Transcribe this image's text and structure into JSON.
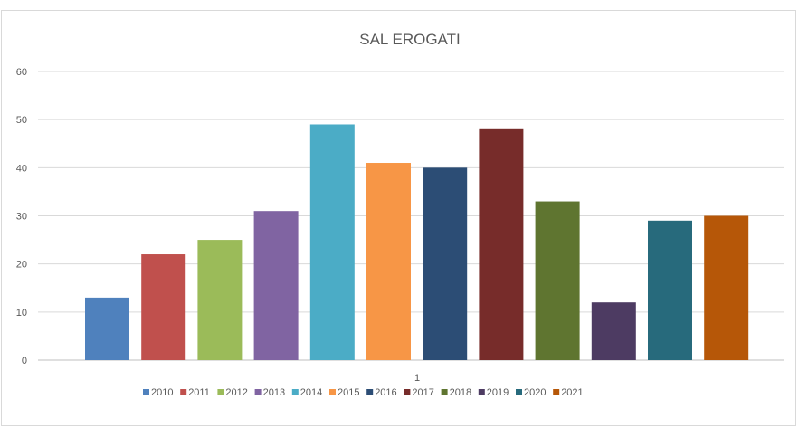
{
  "chart_data": {
    "type": "bar",
    "title": "SAL EROGATI",
    "xlabel": "",
    "ylabel": "",
    "categories": [
      "1"
    ],
    "ylim": [
      0,
      60
    ],
    "yticks": [
      0,
      10,
      20,
      30,
      40,
      50,
      60
    ],
    "grid": true,
    "legend_position": "bottom",
    "series": [
      {
        "name": "2010",
        "values": [
          13
        ],
        "color": "#4f81bd"
      },
      {
        "name": "2011",
        "values": [
          22
        ],
        "color": "#c0504d"
      },
      {
        "name": "2012",
        "values": [
          25
        ],
        "color": "#9bbb59"
      },
      {
        "name": "2013",
        "values": [
          31
        ],
        "color": "#8064a2"
      },
      {
        "name": "2014",
        "values": [
          49
        ],
        "color": "#4bacc6"
      },
      {
        "name": "2015",
        "values": [
          41
        ],
        "color": "#f79646"
      },
      {
        "name": "2016",
        "values": [
          40
        ],
        "color": "#2c4d75"
      },
      {
        "name": "2017",
        "values": [
          48
        ],
        "color": "#772c2a"
      },
      {
        "name": "2018",
        "values": [
          33
        ],
        "color": "#5f7530"
      },
      {
        "name": "2019",
        "values": [
          12
        ],
        "color": "#4d3b62"
      },
      {
        "name": "2020",
        "values": [
          29
        ],
        "color": "#276a7c"
      },
      {
        "name": "2021",
        "values": [
          30
        ],
        "color": "#b65708"
      }
    ]
  }
}
